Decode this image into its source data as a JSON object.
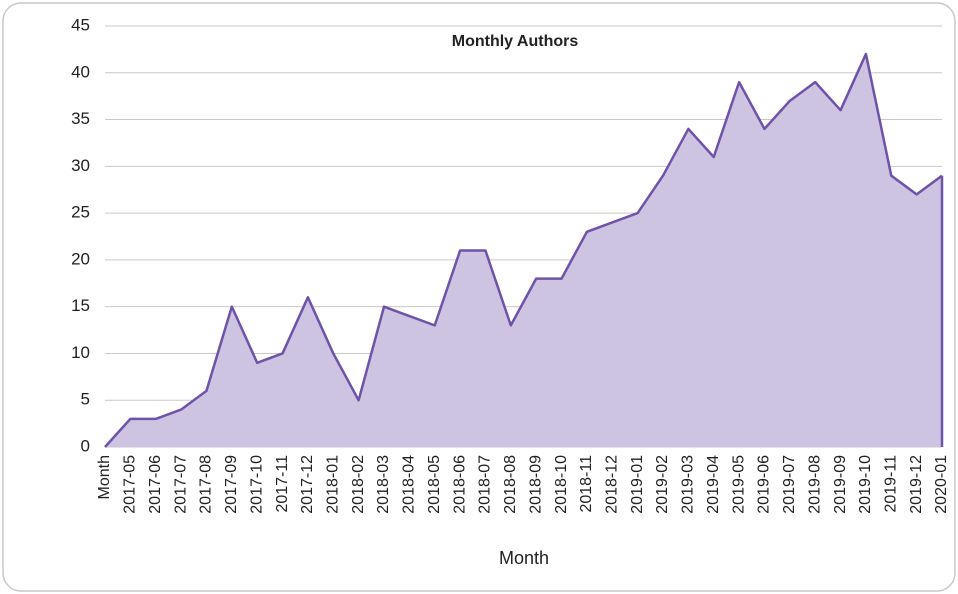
{
  "chart_data": {
    "type": "area",
    "title": "Monthly Authors",
    "x_label": "Month",
    "categories": [
      "Month",
      "2017-05",
      "2017-06",
      "2017-07",
      "2017-08",
      "2017-09",
      "2017-10",
      "2017-11",
      "2017-12",
      "2018-01",
      "2018-02",
      "2018-03",
      "2018-04",
      "2018-05",
      "2018-06",
      "2018-07",
      "2018-08",
      "2018-09",
      "2018-10",
      "2018-11",
      "2018-12",
      "2019-01",
      "2019-02",
      "2019-03",
      "2019-04",
      "2019-05",
      "2019-06",
      "2019-07",
      "2019-08",
      "2019-09",
      "2019-10",
      "2019-11",
      "2019-12",
      "2020-01"
    ],
    "values": [
      0,
      3,
      3,
      4,
      6,
      15,
      9,
      10,
      16,
      10,
      5,
      15,
      14,
      13,
      21,
      21,
      13,
      18,
      18,
      23,
      24,
      25,
      29,
      34,
      31,
      39,
      34,
      37,
      39,
      36,
      42,
      29,
      27,
      29
    ],
    "color": "#6f53a8",
    "fill_color": "#cdc4e2",
    "ylim": [
      0,
      45
    ],
    "yticks": [
      0,
      5,
      10,
      15,
      20,
      25,
      30,
      35,
      40,
      45
    ],
    "grid": true
  }
}
